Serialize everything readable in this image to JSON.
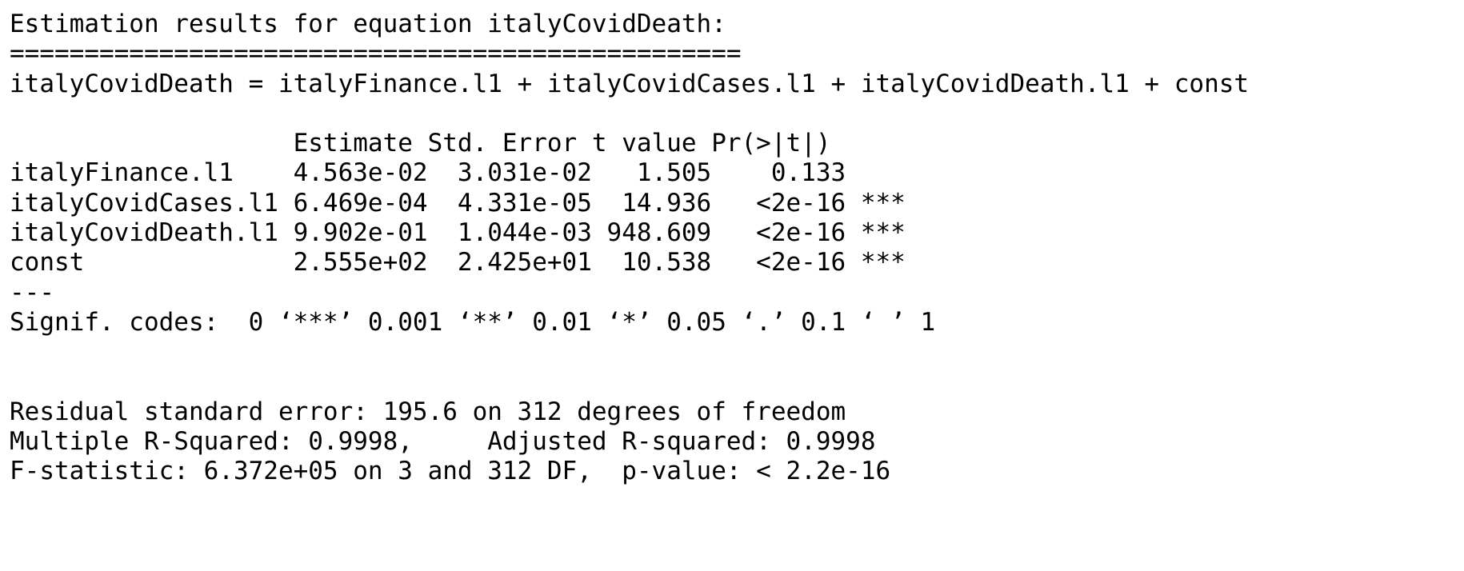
{
  "output": {
    "title": "Estimation results for equation italyCovidDeath:",
    "rule": "=================================================",
    "equation": "italyCovidDeath = italyFinance.l1 + italyCovidCases.l1 + italyCovidDeath.l1 + const",
    "blank_1": "",
    "coef_header": "                   Estimate Std. Error t value Pr(>|t|)    ",
    "coef_rows": [
      "italyFinance.l1    4.563e-02  3.031e-02   1.505    0.133    ",
      "italyCovidCases.l1 6.469e-04  4.331e-05  14.936   <2e-16 ***",
      "italyCovidDeath.l1 9.902e-01  1.044e-03 948.609   <2e-16 ***",
      "const              2.555e+02  2.425e+01  10.538   <2e-16 ***"
    ],
    "separator": "---",
    "signif_codes": "Signif. codes:  0 ‘***’ 0.001 ‘**’ 0.01 ‘*’ 0.05 ‘.’ 0.1 ‘ ’ 1",
    "blank_2": "",
    "blank_3": "",
    "residual_se": "Residual standard error: 195.6 on 312 degrees of freedom",
    "r_squared": "Multiple R-Squared: 0.9998,\tAdjusted R-squared: 0.9998 ",
    "f_statistic": "F-statistic: 6.372e+05 on 3 and 312 DF,  p-value: < 2.2e-16"
  }
}
